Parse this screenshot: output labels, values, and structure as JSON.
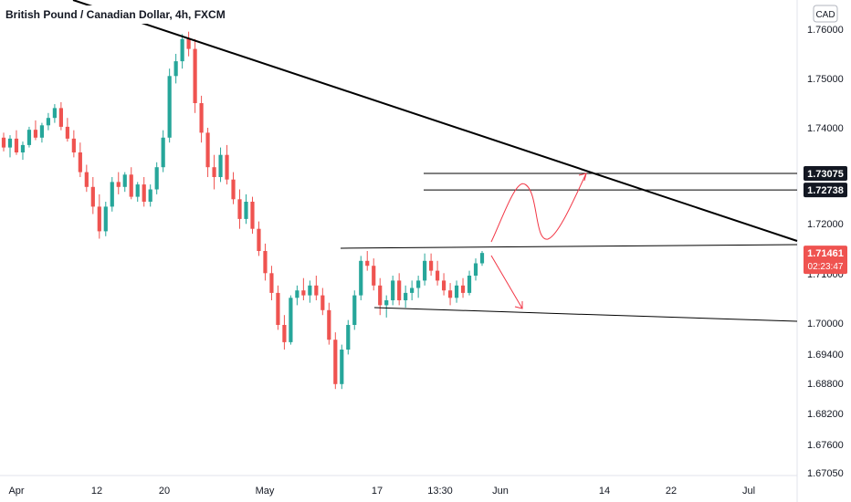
{
  "chart_data": {
    "type": "candlestick",
    "title": "British Pound / Canadian Dollar, 4h, FXCM",
    "currency": "CAD",
    "y_ticks": [
      "1.76000",
      "1.75000",
      "1.74000",
      "1.73075",
      "1.72738",
      "1.72000",
      "1.71461",
      "1.71000",
      "1.70000",
      "1.69400",
      "1.68800",
      "1.68200",
      "1.67600",
      "1.67050"
    ],
    "x_ticks": [
      "Apr",
      "12",
      "20",
      "May",
      "17",
      "13:30",
      "Jun",
      "14",
      "22",
      "Jul"
    ],
    "ylim": [
      1.6695,
      1.7625
    ],
    "price_tags": [
      {
        "label": "1.73075",
        "value": 1.73075,
        "style": "dark"
      },
      {
        "label": "1.72738",
        "value": 1.72738,
        "style": "dark"
      }
    ],
    "last_price": {
      "label": "1.71461",
      "value": 1.71461,
      "countdown": "02:23:47"
    },
    "horizontal_levels": [
      1.73075,
      1.72738
    ],
    "colors": {
      "up": "#26a69a",
      "down": "#ef5350",
      "annotation": "#f23645",
      "line": "#000000",
      "last_price": "#ef5350",
      "tag": "#131722"
    },
    "candles": [
      [
        1.738,
        1.739,
        1.7352,
        1.736
      ],
      [
        1.736,
        1.7385,
        1.734,
        1.7378
      ],
      [
        1.7378,
        1.7395,
        1.7345,
        1.735
      ],
      [
        1.735,
        1.7372,
        1.7335,
        1.7365
      ],
      [
        1.7365,
        1.7402,
        1.736,
        1.7396
      ],
      [
        1.7396,
        1.7415,
        1.7375,
        1.738
      ],
      [
        1.738,
        1.741,
        1.737,
        1.7405
      ],
      [
        1.7405,
        1.743,
        1.7395,
        1.742
      ],
      [
        1.742,
        1.7448,
        1.741,
        1.744
      ],
      [
        1.744,
        1.7452,
        1.7395,
        1.7402
      ],
      [
        1.7402,
        1.742,
        1.7372,
        1.7378
      ],
      [
        1.7378,
        1.7395,
        1.734,
        1.735
      ],
      [
        1.735,
        1.737,
        1.73,
        1.731
      ],
      [
        1.731,
        1.7325,
        1.727,
        1.728
      ],
      [
        1.728,
        1.73,
        1.7225,
        1.724
      ],
      [
        1.724,
        1.7265,
        1.7175,
        1.719
      ],
      [
        1.719,
        1.725,
        1.718,
        1.724
      ],
      [
        1.724,
        1.73,
        1.723,
        1.729
      ],
      [
        1.729,
        1.731,
        1.7265,
        1.728
      ],
      [
        1.728,
        1.731,
        1.727,
        1.7305
      ],
      [
        1.7305,
        1.732,
        1.7255,
        1.726
      ],
      [
        1.726,
        1.729,
        1.725,
        1.7285
      ],
      [
        1.7285,
        1.73,
        1.724,
        1.725
      ],
      [
        1.725,
        1.7285,
        1.724,
        1.7275
      ],
      [
        1.7275,
        1.733,
        1.7265,
        1.732
      ],
      [
        1.732,
        1.7395,
        1.731,
        1.738
      ],
      [
        1.738,
        1.752,
        1.737,
        1.7505
      ],
      [
        1.7505,
        1.755,
        1.749,
        1.7535
      ],
      [
        1.7535,
        1.759,
        1.752,
        1.758
      ],
      [
        1.758,
        1.7595,
        1.7545,
        1.756
      ],
      [
        1.756,
        1.758,
        1.743,
        1.745
      ],
      [
        1.745,
        1.7465,
        1.737,
        1.739
      ],
      [
        1.739,
        1.74,
        1.73,
        1.732
      ],
      [
        1.732,
        1.7345,
        1.7275,
        1.73
      ],
      [
        1.73,
        1.736,
        1.729,
        1.7345
      ],
      [
        1.7345,
        1.7365,
        1.7285,
        1.7295
      ],
      [
        1.7295,
        1.731,
        1.7245,
        1.7255
      ],
      [
        1.7255,
        1.7275,
        1.7195,
        1.7215
      ],
      [
        1.7215,
        1.7265,
        1.7205,
        1.725
      ],
      [
        1.725,
        1.726,
        1.7185,
        1.7195
      ],
      [
        1.7195,
        1.721,
        1.714,
        1.715
      ],
      [
        1.715,
        1.7165,
        1.709,
        1.7105
      ],
      [
        1.7105,
        1.712,
        1.705,
        1.7065
      ],
      [
        1.7065,
        1.708,
        1.699,
        1.7
      ],
      [
        1.7,
        1.702,
        1.695,
        1.6965
      ],
      [
        1.6965,
        1.706,
        1.696,
        1.7055
      ],
      [
        1.7055,
        1.708,
        1.704,
        1.707
      ],
      [
        1.707,
        1.7095,
        1.705,
        1.706
      ],
      [
        1.706,
        1.709,
        1.7045,
        1.708
      ],
      [
        1.708,
        1.71,
        1.705,
        1.706
      ],
      [
        1.706,
        1.7075,
        1.702,
        1.703
      ],
      [
        1.703,
        1.7045,
        1.696,
        1.697
      ],
      [
        1.697,
        1.6985,
        1.687,
        1.688
      ],
      [
        1.688,
        1.696,
        1.687,
        1.695
      ],
      [
        1.695,
        1.701,
        1.694,
        1.7
      ],
      [
        1.7,
        1.707,
        1.699,
        1.706
      ],
      [
        1.706,
        1.714,
        1.705,
        1.713
      ],
      [
        1.713,
        1.715,
        1.711,
        1.712
      ],
      [
        1.712,
        1.7135,
        1.707,
        1.708
      ],
      [
        1.708,
        1.7095,
        1.702,
        1.704
      ],
      [
        1.704,
        1.706,
        1.7015,
        1.705
      ],
      [
        1.705,
        1.71,
        1.704,
        1.709
      ],
      [
        1.709,
        1.7105,
        1.704,
        1.705
      ],
      [
        1.705,
        1.708,
        1.7035,
        1.7065
      ],
      [
        1.7065,
        1.709,
        1.705,
        1.7075
      ],
      [
        1.7075,
        1.71,
        1.7055,
        1.709
      ],
      [
        1.709,
        1.7145,
        1.708,
        1.713
      ],
      [
        1.713,
        1.7145,
        1.71,
        1.711
      ],
      [
        1.711,
        1.713,
        1.708,
        1.709
      ],
      [
        1.709,
        1.7105,
        1.706,
        1.707
      ],
      [
        1.707,
        1.7085,
        1.704,
        1.7055
      ],
      [
        1.7055,
        1.709,
        1.7045,
        1.708
      ],
      [
        1.708,
        1.7095,
        1.7055,
        1.7065
      ],
      [
        1.7065,
        1.711,
        1.706,
        1.71
      ],
      [
        1.71,
        1.7135,
        1.709,
        1.7125
      ],
      [
        1.7125,
        1.715,
        1.712,
        1.7146
      ]
    ]
  }
}
